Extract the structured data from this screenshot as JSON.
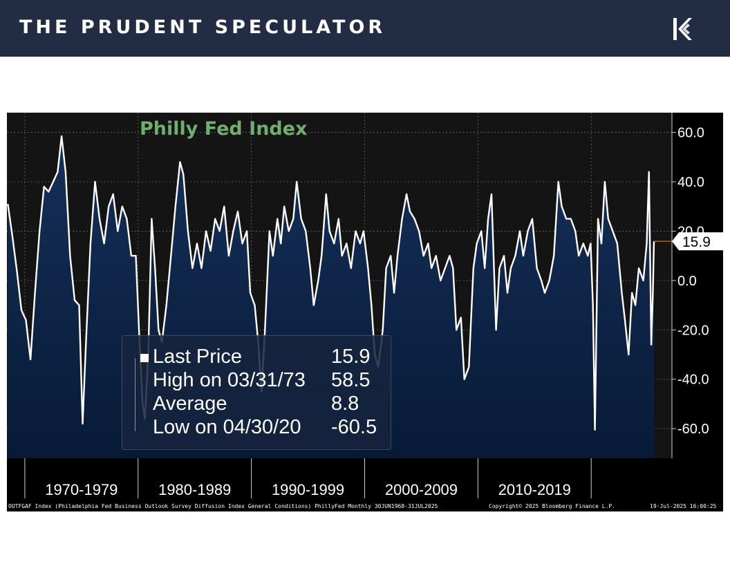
{
  "header": {
    "brand": "THE PRUDENT SPECULATOR",
    "logo_icon": "kp-monogram-icon",
    "background": "#222c42"
  },
  "chart_data": {
    "type": "area",
    "title": "Philly Fed Index",
    "xlabel": "",
    "ylabel": "",
    "x_range": [
      "1968-06",
      "2025-07"
    ],
    "ylim": [
      -72,
      68
    ],
    "y_ticks": [
      -60,
      -40,
      -20,
      0,
      20,
      40,
      60
    ],
    "y_tick_labels": [
      "-60.0",
      "-40.0",
      "-20.0",
      "0.0",
      "20.0",
      "40.0",
      "60.0"
    ],
    "x_tick_labels": [
      "1970-1979",
      "1980-1989",
      "1990-1999",
      "2000-2009",
      "2010-2019"
    ],
    "x_decades": [
      {
        "label": "1970-1979",
        "start": 1970
      },
      {
        "label": "1980-1989",
        "start": 1980
      },
      {
        "label": "1990-1999",
        "start": 1990
      },
      {
        "label": "2000-2009",
        "start": 2000
      },
      {
        "label": "2010-2019",
        "start": 2010
      },
      {
        "label": "",
        "start": 2020
      }
    ],
    "series": [
      {
        "values": [
          [
            1968.5,
            31
          ],
          [
            1968.9,
            18
          ],
          [
            1969.3,
            4
          ],
          [
            1969.7,
            -12
          ],
          [
            1970.1,
            -16
          ],
          [
            1970.5,
            -32
          ],
          [
            1970.9,
            -5
          ],
          [
            1971.3,
            20
          ],
          [
            1971.7,
            38
          ],
          [
            1972.1,
            36
          ],
          [
            1972.5,
            40
          ],
          [
            1972.9,
            44
          ],
          [
            1973.25,
            58.5
          ],
          [
            1973.6,
            44
          ],
          [
            1974.0,
            10
          ],
          [
            1974.4,
            -8
          ],
          [
            1974.8,
            -10
          ],
          [
            1975.1,
            -58
          ],
          [
            1975.4,
            -25
          ],
          [
            1975.8,
            15
          ],
          [
            1976.2,
            40
          ],
          [
            1976.6,
            25
          ],
          [
            1977.0,
            15
          ],
          [
            1977.4,
            30
          ],
          [
            1977.8,
            35
          ],
          [
            1978.2,
            20
          ],
          [
            1978.6,
            30
          ],
          [
            1979.0,
            25
          ],
          [
            1979.4,
            10
          ],
          [
            1979.8,
            10
          ],
          [
            1980.1,
            -22
          ],
          [
            1980.4,
            -50
          ],
          [
            1980.6,
            -56
          ],
          [
            1980.9,
            -30
          ],
          [
            1981.2,
            25
          ],
          [
            1981.5,
            5
          ],
          [
            1981.8,
            -20
          ],
          [
            1982.1,
            -25
          ],
          [
            1982.5,
            -10
          ],
          [
            1982.9,
            10
          ],
          [
            1983.3,
            30
          ],
          [
            1983.7,
            48
          ],
          [
            1984.0,
            43
          ],
          [
            1984.4,
            20
          ],
          [
            1984.8,
            5
          ],
          [
            1985.2,
            15
          ],
          [
            1985.6,
            5
          ],
          [
            1986.0,
            20
          ],
          [
            1986.4,
            12
          ],
          [
            1986.8,
            25
          ],
          [
            1987.2,
            20
          ],
          [
            1987.6,
            30
          ],
          [
            1988.0,
            10
          ],
          [
            1988.4,
            20
          ],
          [
            1988.8,
            28
          ],
          [
            1989.2,
            15
          ],
          [
            1989.6,
            20
          ],
          [
            1989.9,
            -5
          ],
          [
            1990.3,
            -10
          ],
          [
            1990.6,
            -25
          ],
          [
            1990.9,
            -45
          ],
          [
            1991.2,
            -20
          ],
          [
            1991.6,
            20
          ],
          [
            1991.9,
            10
          ],
          [
            1992.3,
            25
          ],
          [
            1992.6,
            15
          ],
          [
            1992.9,
            30
          ],
          [
            1993.3,
            20
          ],
          [
            1993.7,
            25
          ],
          [
            1994.0,
            40
          ],
          [
            1994.4,
            25
          ],
          [
            1994.8,
            20
          ],
          [
            1995.2,
            5
          ],
          [
            1995.5,
            -10
          ],
          [
            1995.9,
            0
          ],
          [
            1996.2,
            10
          ],
          [
            1996.6,
            35
          ],
          [
            1996.9,
            20
          ],
          [
            1997.3,
            15
          ],
          [
            1997.7,
            25
          ],
          [
            1998.0,
            10
          ],
          [
            1998.4,
            15
          ],
          [
            1998.8,
            5
          ],
          [
            1999.2,
            20
          ],
          [
            1999.6,
            15
          ],
          [
            1999.9,
            20
          ],
          [
            2000.3,
            5
          ],
          [
            2000.6,
            -10
          ],
          [
            2000.9,
            -30
          ],
          [
            2001.2,
            -35
          ],
          [
            2001.6,
            -20
          ],
          [
            2001.9,
            5
          ],
          [
            2002.3,
            10
          ],
          [
            2002.6,
            -5
          ],
          [
            2002.9,
            10
          ],
          [
            2003.3,
            25
          ],
          [
            2003.7,
            35
          ],
          [
            2004.0,
            28
          ],
          [
            2004.4,
            25
          ],
          [
            2004.8,
            20
          ],
          [
            2005.2,
            10
          ],
          [
            2005.6,
            15
          ],
          [
            2005.9,
            5
          ],
          [
            2006.3,
            10
          ],
          [
            2006.7,
            0
          ],
          [
            2007.1,
            5
          ],
          [
            2007.5,
            10
          ],
          [
            2007.8,
            5
          ],
          [
            2008.1,
            -20
          ],
          [
            2008.5,
            -15
          ],
          [
            2008.8,
            -40
          ],
          [
            2009.2,
            -35
          ],
          [
            2009.6,
            5
          ],
          [
            2009.9,
            15
          ],
          [
            2010.3,
            20
          ],
          [
            2010.6,
            5
          ],
          [
            2010.9,
            25
          ],
          [
            2011.2,
            35
          ],
          [
            2011.6,
            -20
          ],
          [
            2011.9,
            5
          ],
          [
            2012.3,
            10
          ],
          [
            2012.6,
            -5
          ],
          [
            2012.9,
            5
          ],
          [
            2013.3,
            10
          ],
          [
            2013.7,
            20
          ],
          [
            2014.0,
            10
          ],
          [
            2014.4,
            20
          ],
          [
            2014.8,
            25
          ],
          [
            2015.2,
            5
          ],
          [
            2015.6,
            0
          ],
          [
            2015.9,
            -5
          ],
          [
            2016.3,
            0
          ],
          [
            2016.7,
            10
          ],
          [
            2017.1,
            40
          ],
          [
            2017.4,
            30
          ],
          [
            2017.8,
            25
          ],
          [
            2018.2,
            25
          ],
          [
            2018.6,
            20
          ],
          [
            2018.9,
            10
          ],
          [
            2019.3,
            15
          ],
          [
            2019.7,
            10
          ],
          [
            2019.95,
            15
          ],
          [
            2020.15,
            -10
          ],
          [
            2020.33,
            -60.5
          ],
          [
            2020.6,
            25
          ],
          [
            2020.9,
            15
          ],
          [
            2021.2,
            40
          ],
          [
            2021.5,
            25
          ],
          [
            2021.9,
            20
          ],
          [
            2022.3,
            15
          ],
          [
            2022.7,
            -5
          ],
          [
            2022.95,
            -15
          ],
          [
            2023.3,
            -30
          ],
          [
            2023.6,
            -5
          ],
          [
            2023.9,
            -10
          ],
          [
            2024.2,
            5
          ],
          [
            2024.6,
            0
          ],
          [
            2024.9,
            15
          ],
          [
            2025.1,
            44
          ],
          [
            2025.3,
            -26
          ],
          [
            2025.45,
            -4
          ],
          [
            2025.54,
            15.9
          ]
        ]
      }
    ],
    "last_value_label": "15.9",
    "legend": [
      {
        "label": "Last Price",
        "value": "15.9"
      },
      {
        "label": "High on 03/31/73",
        "value": "58.5"
      },
      {
        "label": "Average",
        "value": "8.8"
      },
      {
        "label": "Low on 04/30/20",
        "value": "-60.5"
      }
    ],
    "grid": true,
    "legend_position": "bottom-left",
    "colors": {
      "line": "#ffffff",
      "fill_top": "#15305a",
      "fill_bottom": "#081a36",
      "plot_background": "#141414",
      "title": "#6fae6f",
      "last_value_marker": "#e07a1f"
    }
  },
  "footer": {
    "source": "OUTFGAF Index (Philadelphia Fed Business Outlook Survey Diffusion Index General Conditions) PhillyFed  Monthly 30JUN1968-31JUL2025",
    "copyright": "Copyright© 2025 Bloomberg Finance L.P.",
    "timestamp": "19-Jul-2025 16:00:25"
  }
}
